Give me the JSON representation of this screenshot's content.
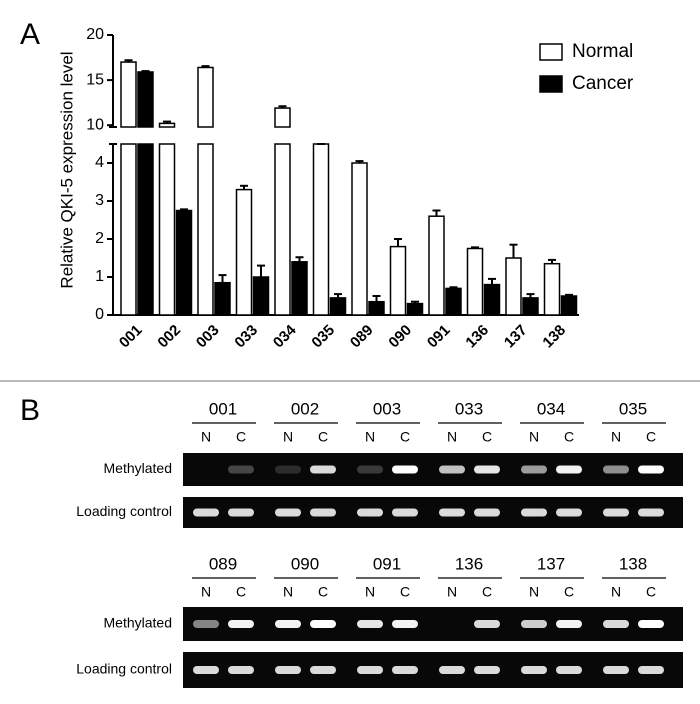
{
  "panel_a_label": "A",
  "chart_data": {
    "type": "bar",
    "y_label": "Relative QKI-5 expression level",
    "categories": [
      "001",
      "002",
      "003",
      "033",
      "034",
      "035",
      "089",
      "090",
      "091",
      "136",
      "137",
      "138"
    ],
    "series": [
      {
        "name": "Normal",
        "color": "#ffffff",
        "values": [
          17.0,
          10.2,
          16.4,
          3.3,
          11.9,
          4.5,
          4.0,
          1.8,
          2.6,
          1.75,
          1.5,
          1.35
        ],
        "errors": [
          0.2,
          0.2,
          0.15,
          0.1,
          0.2,
          0,
          0.05,
          0.2,
          0.15,
          0.03,
          0.35,
          0.1
        ]
      },
      {
        "name": "Cancer",
        "color": "#000000",
        "values": [
          15.9,
          2.75,
          0.85,
          1.0,
          1.4,
          0.45,
          0.35,
          0.3,
          0.7,
          0.8,
          0.45,
          0.5
        ],
        "errors": [
          0.1,
          0.03,
          0.2,
          0.3,
          0.12,
          0.1,
          0.15,
          0.05,
          0.03,
          0.15,
          0.1,
          0.03
        ]
      }
    ],
    "ylim": [
      0,
      20
    ],
    "ybreak": [
      4.5,
      9.8
    ],
    "yticks": [
      0,
      1,
      2,
      3,
      4,
      10,
      15,
      20
    ],
    "legend": "upper right"
  },
  "panel_b": {
    "label": "B",
    "lanes": [
      "N",
      "C"
    ],
    "rows": [
      "Methylated",
      "Loading control"
    ],
    "blocks": [
      {
        "samples": [
          "001",
          "002",
          "003",
          "033",
          "034",
          "035"
        ]
      },
      {
        "samples": [
          "089",
          "090",
          "091",
          "136",
          "137",
          "138"
        ]
      }
    ]
  }
}
